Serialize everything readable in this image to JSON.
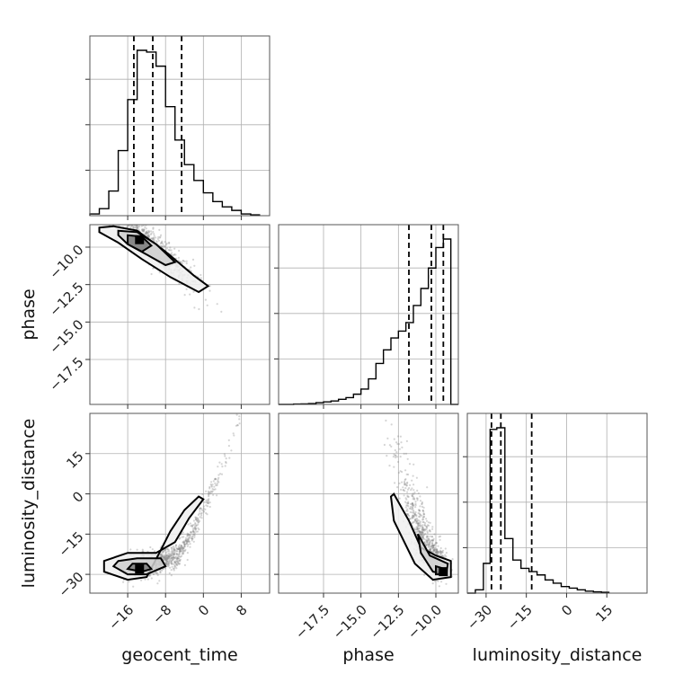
{
  "chart_data": {
    "type": "corner",
    "parameters": [
      "geocent_time",
      "phase",
      "luminosity_distance"
    ],
    "axis_labels": {
      "geocent_time": "geocent_time",
      "phase": "phase",
      "luminosity_distance": "luminosity_distance"
    },
    "ranges": {
      "geocent_time": [
        -24,
        14
      ],
      "phase": [
        -20.5,
        -8.5
      ],
      "luminosity_distance": [
        -37,
        30
      ]
    },
    "ticks": {
      "geocent_time": [
        -16,
        -8,
        0,
        8
      ],
      "phase": [
        -17.5,
        -15.0,
        -12.5,
        -10.0
      ],
      "luminosity_distance": [
        -30,
        -15,
        0,
        15
      ]
    },
    "tick_labels": {
      "geocent_time": [
        "−16",
        "−8",
        "0",
        "8"
      ],
      "phase": [
        "−17.5",
        "−15.0",
        "−12.5",
        "−10.0"
      ],
      "luminosity_distance": [
        "−30",
        "−15",
        "0",
        "15"
      ]
    },
    "histograms": {
      "geocent_time": {
        "edges": [
          -24,
          -22,
          -20,
          -18,
          -16,
          -14,
          -12,
          -10,
          -8,
          -6,
          -4,
          -2,
          0,
          2,
          4,
          6,
          8,
          10,
          12
        ],
        "counts": [
          1,
          4,
          14,
          37,
          66,
          94,
          93,
          85,
          62,
          43,
          29,
          20,
          13,
          8,
          5,
          3,
          1,
          0.5
        ]
      },
      "phase": {
        "edges": [
          -20.5,
          -19.5,
          -19,
          -18.5,
          -18,
          -17.5,
          -17,
          -16.5,
          -16,
          -15.5,
          -15,
          -14.5,
          -14,
          -13.5,
          -13,
          -12.5,
          -12,
          -11.5,
          -11,
          -10.5,
          -10,
          -9.5,
          -9,
          -8.5
        ],
        "counts": [
          0,
          0.2,
          0.3,
          0.5,
          1,
          1.5,
          2,
          3,
          4,
          6,
          9,
          15,
          24,
          32,
          39,
          43,
          48,
          58,
          68,
          80,
          92,
          97,
          0
        ]
      },
      "luminosity_distance": {
        "edges": [
          -37,
          -34,
          -31,
          -28.5,
          -26,
          -23,
          -20,
          -17,
          -14,
          -11,
          -8,
          -5,
          -2,
          1,
          4,
          7,
          10,
          13,
          16
        ],
        "counts": [
          0,
          2,
          18,
          99,
          100,
          33,
          20,
          15,
          13,
          11,
          8,
          6,
          4,
          3,
          2,
          1.2,
          0.8,
          0.5
        ]
      }
    },
    "quantiles": {
      "geocent_time": [
        -14.7,
        -10.7,
        -4.6
      ],
      "phase": [
        -11.8,
        -10.3,
        -9.5
      ],
      "luminosity_distance": [
        -28.0,
        -24.5,
        -13.0
      ]
    },
    "scatter_pairs": [
      {
        "x": "geocent_time",
        "y": "phase",
        "peak": [
          -13.5,
          -9.5
        ],
        "orientation": "negative correlation"
      },
      {
        "x": "geocent_time",
        "y": "luminosity_distance",
        "peak": [
          -13.5,
          -28
        ],
        "orientation": "positive curved"
      },
      {
        "x": "phase",
        "y": "luminosity_distance",
        "peak": [
          -9.5,
          -29
        ],
        "orientation": "negative correlation"
      }
    ],
    "grid": true,
    "colors": {
      "hist": "#000000",
      "points": "#888888",
      "contour": "#000000"
    }
  }
}
